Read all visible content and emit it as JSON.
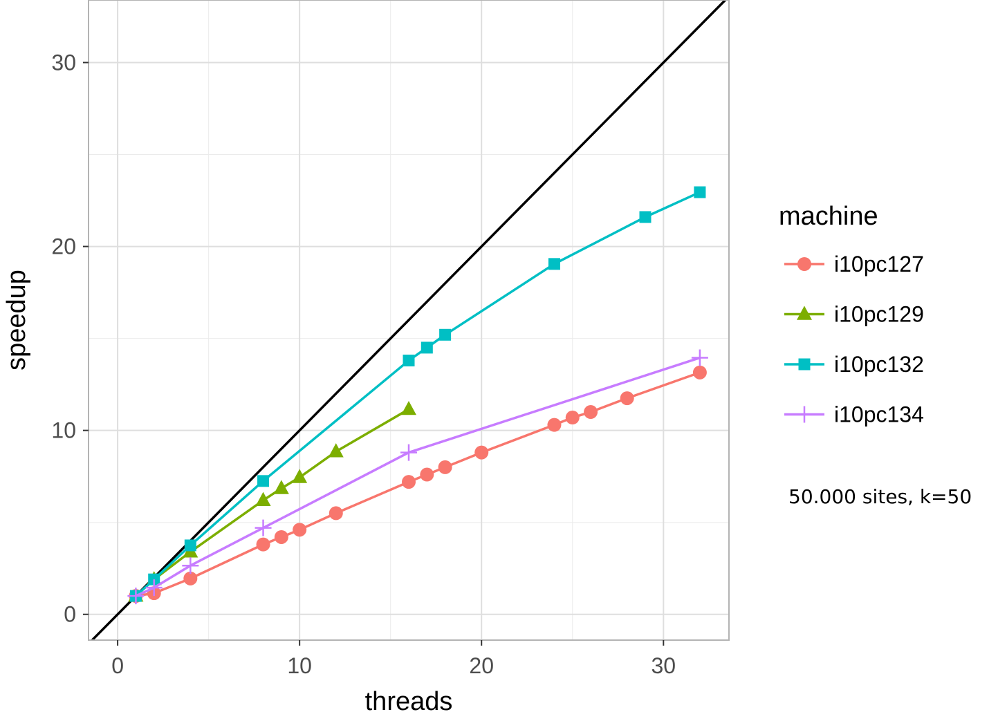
{
  "chart_data": {
    "type": "line",
    "xlabel": "threads",
    "ylabel": "speedup",
    "xlim": [
      -1.6,
      33.6
    ],
    "ylim": [
      -1.4,
      33.4
    ],
    "xticks": [
      0,
      10,
      20,
      30
    ],
    "yticks": [
      0,
      10,
      20,
      30
    ],
    "grid": true,
    "legend": {
      "title": "machine",
      "position": "right"
    },
    "reference_line": {
      "kind": "identity",
      "color": "#000000"
    },
    "annotation": "50.000 sites, k=50",
    "series": [
      {
        "name": "i10pc127",
        "color": "#F8766D",
        "marker": "circle",
        "x": [
          1,
          2,
          4,
          8,
          9,
          10,
          12,
          16,
          17,
          18,
          20,
          24,
          25,
          26,
          28,
          32
        ],
        "y": [
          1.0,
          1.15,
          1.95,
          3.8,
          4.2,
          4.6,
          5.5,
          7.2,
          7.6,
          8.0,
          8.8,
          10.3,
          10.7,
          11.0,
          11.75,
          13.15
        ]
      },
      {
        "name": "i10pc129",
        "color": "#7CAE00",
        "marker": "triangle",
        "x": [
          1,
          2,
          4,
          8,
          9,
          10,
          12,
          16
        ],
        "y": [
          1.0,
          1.9,
          3.4,
          6.2,
          6.85,
          7.45,
          8.85,
          11.15
        ]
      },
      {
        "name": "i10pc132",
        "color": "#00BFC4",
        "marker": "square",
        "x": [
          1,
          2,
          4,
          8,
          16,
          17,
          18,
          24,
          29,
          32
        ],
        "y": [
          1.0,
          1.9,
          3.75,
          7.25,
          13.8,
          14.5,
          15.2,
          19.05,
          21.6,
          22.95
        ]
      },
      {
        "name": "i10pc134",
        "color": "#C77CFF",
        "marker": "plus",
        "x": [
          1,
          2,
          4,
          8,
          16,
          32
        ],
        "y": [
          1.0,
          1.45,
          2.65,
          4.7,
          8.8,
          13.95
        ]
      }
    ]
  }
}
